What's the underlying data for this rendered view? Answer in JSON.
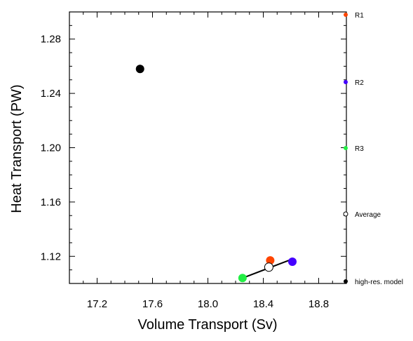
{
  "chart_data": {
    "type": "scatter",
    "title": "",
    "xlabel": "Volume Transport (Sv)",
    "ylabel": "Heat Transport (PW)",
    "xlim": [
      17.0,
      19.0
    ],
    "ylim": [
      1.1,
      1.3
    ],
    "x_ticks": [
      17.2,
      17.6,
      18.0,
      18.4,
      18.8
    ],
    "x_tick_labels": [
      "17.2",
      "17.6",
      "18.0",
      "18.4",
      "18.8"
    ],
    "y_ticks": [
      1.12,
      1.16,
      1.2,
      1.24,
      1.28
    ],
    "y_tick_labels": [
      "1.12",
      "1.16",
      "1.20",
      "1.24",
      "1.28"
    ],
    "grid": false,
    "legend_position": "right",
    "series": [
      {
        "name": "R1",
        "color": "#ff4500",
        "marker": "filled-circle",
        "x": [
          18.45
        ],
        "y": [
          1.117
        ]
      },
      {
        "name": "R2",
        "color": "#4400ff",
        "marker": "filled-circle",
        "x": [
          18.61
        ],
        "y": [
          1.116
        ]
      },
      {
        "name": "R3",
        "color": "#22ee44",
        "marker": "filled-circle",
        "x": [
          18.25
        ],
        "y": [
          1.104
        ]
      },
      {
        "name": "Average",
        "color": "#000000",
        "marker": "open-circle",
        "x": [
          18.44
        ],
        "y": [
          1.112
        ]
      },
      {
        "name": "high-res. model",
        "color": "#000000",
        "marker": "filled-circle",
        "x": [
          17.51
        ],
        "y": [
          1.258
        ]
      }
    ],
    "fit_line": {
      "color": "#000000",
      "x": [
        18.25,
        18.61
      ],
      "y": [
        1.104,
        1.118
      ]
    }
  }
}
